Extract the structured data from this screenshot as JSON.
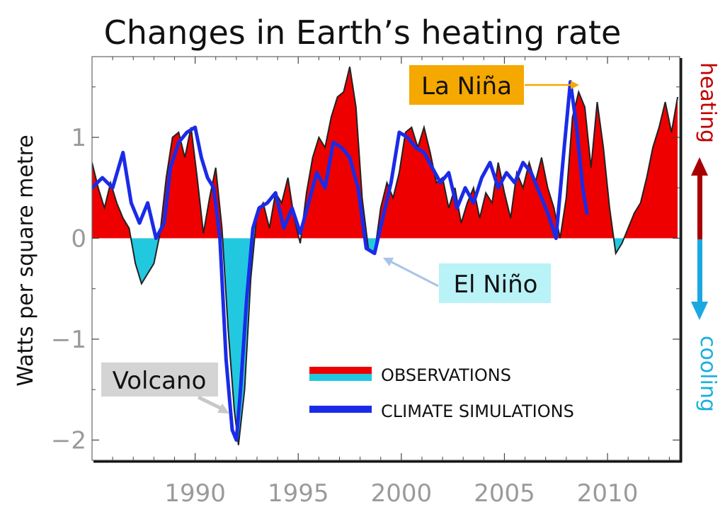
{
  "chart_data": {
    "type": "area",
    "title": "Changes in Earth’s heating rate",
    "xlabel": "",
    "ylabel": "Watts per square metre",
    "xlim": [
      1985,
      2013.5
    ],
    "ylim": [
      -2.2,
      1.8
    ],
    "xticks": [
      1990,
      1995,
      2000,
      2005,
      2010
    ],
    "xtick_labels": [
      "1990",
      "1995",
      "2000",
      "2005",
      "2010"
    ],
    "yticks": [
      -2,
      -1,
      0,
      1
    ],
    "ytick_labels": [
      "−2",
      "−1",
      "0",
      "1"
    ],
    "legend_position": "lower-right",
    "series": [
      {
        "name": "OBSERVATIONS",
        "style": "filled-area",
        "color_positive": "#ee0000",
        "color_negative": "#22c8e0",
        "x": [
          1985.0,
          1985.3,
          1985.6,
          1985.9,
          1986.2,
          1986.5,
          1986.8,
          1987.1,
          1987.4,
          1987.7,
          1988.0,
          1988.3,
          1988.6,
          1988.9,
          1989.2,
          1989.5,
          1989.8,
          1990.1,
          1990.4,
          1990.7,
          1991.0,
          1991.3,
          1991.6,
          1991.9,
          1992.1,
          1992.4,
          1992.7,
          1993.0,
          1993.3,
          1993.6,
          1993.9,
          1994.2,
          1994.5,
          1994.8,
          1995.1,
          1995.4,
          1995.7,
          1996.0,
          1996.3,
          1996.6,
          1996.9,
          1997.2,
          1997.5,
          1997.8,
          1998.1,
          1998.4,
          1998.7,
          1999.0,
          1999.3,
          1999.6,
          1999.9,
          2000.2,
          2000.5,
          2000.8,
          2001.1,
          2001.4,
          2001.7,
          2002.0,
          2002.3,
          2002.6,
          2002.9,
          2003.2,
          2003.5,
          2003.8,
          2004.1,
          2004.4,
          2004.7,
          2005.0,
          2005.3,
          2005.6,
          2005.9,
          2006.2,
          2006.5,
          2006.8,
          2007.1,
          2007.4,
          2007.7,
          2008.0,
          2008.3,
          2008.6,
          2008.9,
          2009.2,
          2009.5,
          2009.8,
          2010.1,
          2010.4,
          2010.7,
          2011.0,
          2011.3,
          2011.6,
          2011.9,
          2012.2,
          2012.5,
          2012.8,
          2013.1,
          2013.4
        ],
        "y": [
          0.75,
          0.5,
          0.3,
          0.55,
          0.35,
          0.2,
          0.1,
          -0.25,
          -0.45,
          -0.35,
          -0.25,
          0.05,
          0.6,
          1.0,
          1.05,
          0.8,
          1.1,
          0.6,
          0.05,
          0.4,
          0.7,
          0.1,
          -0.9,
          -1.7,
          -2.05,
          -1.5,
          -0.4,
          0.25,
          0.35,
          0.1,
          0.45,
          0.35,
          0.6,
          0.2,
          -0.05,
          0.45,
          0.8,
          1.0,
          0.9,
          1.2,
          1.4,
          1.45,
          1.7,
          1.3,
          0.4,
          -0.1,
          -0.15,
          0.3,
          0.55,
          0.4,
          0.65,
          1.05,
          1.1,
          0.9,
          1.1,
          0.85,
          0.55,
          0.6,
          0.3,
          0.5,
          0.15,
          0.35,
          0.5,
          0.2,
          0.45,
          0.35,
          0.75,
          0.45,
          0.2,
          0.65,
          0.5,
          0.75,
          0.55,
          0.8,
          0.5,
          0.3,
          0.0,
          0.4,
          1.2,
          1.45,
          1.3,
          0.7,
          1.35,
          0.9,
          0.3,
          -0.15,
          -0.05,
          0.1,
          0.25,
          0.35,
          0.6,
          0.9,
          1.1,
          1.35,
          1.05,
          1.4
        ]
      },
      {
        "name": "CLIMATE SIMULATIONS",
        "style": "line",
        "color": "#1a2be8",
        "x": [
          1985.0,
          1985.5,
          1986.0,
          1986.5,
          1986.9,
          1987.3,
          1987.7,
          1988.1,
          1988.5,
          1988.8,
          1989.2,
          1989.6,
          1990.0,
          1990.3,
          1990.6,
          1990.9,
          1991.2,
          1991.5,
          1991.8,
          1992.0,
          1992.2,
          1992.5,
          1992.8,
          1993.1,
          1993.5,
          1993.9,
          1994.3,
          1994.7,
          1995.1,
          1995.5,
          1995.9,
          1996.3,
          1996.7,
          1997.1,
          1997.5,
          1997.9,
          1998.3,
          1998.7,
          1999.1,
          1999.5,
          1999.9,
          2000.3,
          2000.7,
          2001.1,
          2001.5,
          2001.9,
          2002.3,
          2002.7,
          2003.1,
          2003.5,
          2003.9,
          2004.3,
          2004.7,
          2005.1,
          2005.5,
          2005.9,
          2006.3,
          2006.7,
          2007.1,
          2007.5,
          2007.9,
          2008.2,
          2008.5,
          2008.8,
          2009.0
        ],
        "y": [
          0.5,
          0.6,
          0.5,
          0.85,
          0.35,
          0.15,
          0.35,
          0.0,
          0.15,
          0.7,
          0.95,
          1.05,
          1.1,
          0.8,
          0.6,
          0.5,
          0.0,
          -1.2,
          -1.9,
          -2.0,
          -1.5,
          -0.6,
          0.1,
          0.3,
          0.35,
          0.45,
          0.1,
          0.3,
          0.05,
          0.35,
          0.65,
          0.5,
          0.95,
          0.9,
          0.8,
          0.5,
          -0.1,
          -0.15,
          0.2,
          0.55,
          1.05,
          1.0,
          0.9,
          0.85,
          0.7,
          0.55,
          0.65,
          0.3,
          0.5,
          0.35,
          0.6,
          0.75,
          0.5,
          0.65,
          0.55,
          0.75,
          0.65,
          0.45,
          0.25,
          0.0,
          0.9,
          1.55,
          1.1,
          0.5,
          0.25
        ]
      }
    ],
    "annotations": [
      {
        "text": "La Niña",
        "points_to": [
          2008.4,
          1.55
        ],
        "box_color": "#f5a800",
        "arrow_color": "#f5a800"
      },
      {
        "text": "El Niño",
        "points_to": [
          1998.7,
          -0.15
        ],
        "box_color": "#b9f2f7",
        "arrow_color": "#a9c4e8"
      },
      {
        "text": "Volcano",
        "points_to": [
          1991.9,
          -1.75
        ],
        "box_color": "#d4d4d4",
        "arrow_color": "#c8c8c8"
      }
    ],
    "side_labels": {
      "top": "heating",
      "top_color": "#c00000",
      "bottom": "cooling",
      "bottom_color": "#1ab0dd",
      "arrow_up_color": "#a80000",
      "arrow_down_color": "#1aa8e0"
    }
  }
}
